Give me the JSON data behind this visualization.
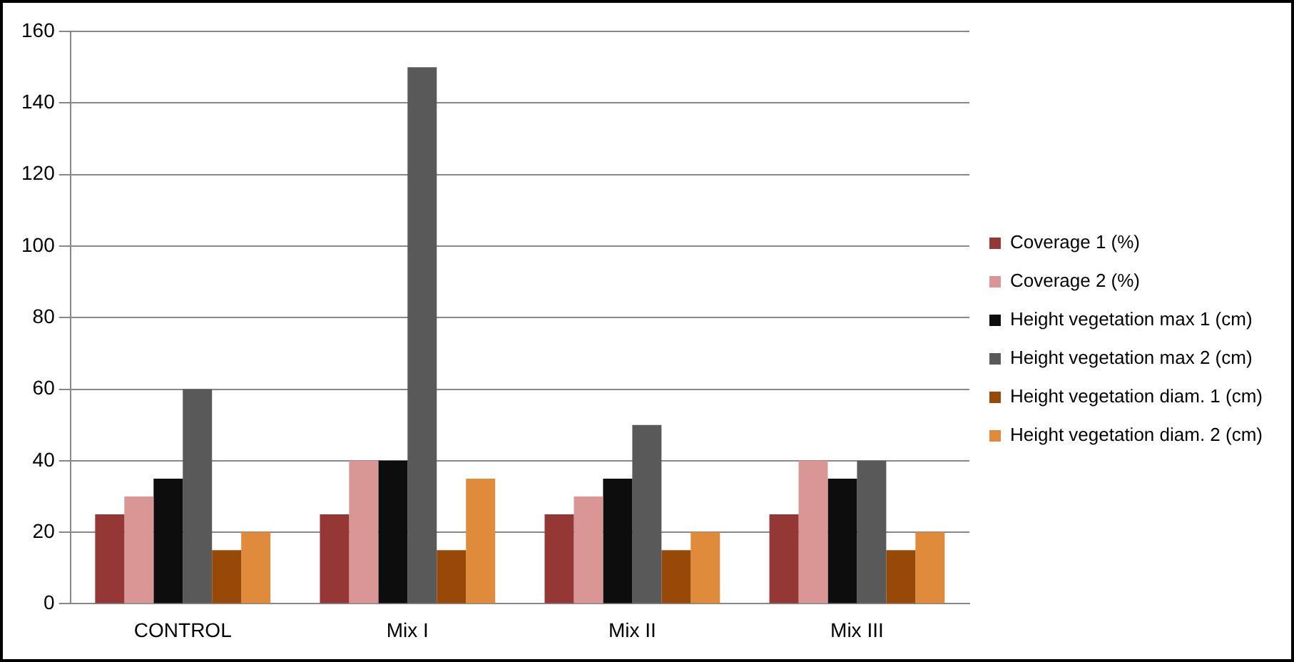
{
  "chart_data": {
    "type": "bar",
    "categories": [
      "CONTROL",
      "Mix I",
      "Mix II",
      "Mix III"
    ],
    "series": [
      {
        "name": "Coverage 1 (%)",
        "color": "#953735",
        "values": [
          25,
          25,
          25,
          25
        ]
      },
      {
        "name": "Coverage 2 (%)",
        "color": "#d99694",
        "values": [
          30,
          40,
          30,
          40
        ]
      },
      {
        "name": "Height vegetation max 1 (cm)",
        "color": "#0d0d0d",
        "values": [
          35,
          40,
          35,
          35
        ]
      },
      {
        "name": "Height vegetation max 2 (cm)",
        "color": "#595959",
        "values": [
          60,
          150,
          50,
          40
        ]
      },
      {
        "name": "Height vegetation diam. 1 (cm)",
        "color": "#984807",
        "values": [
          15,
          15,
          15,
          15
        ]
      },
      {
        "name": "Height vegetation diam. 2 (cm)",
        "color": "#e08a3c",
        "values": [
          20,
          35,
          20,
          20
        ]
      }
    ],
    "ylim": [
      0,
      160
    ],
    "yticks": [
      0,
      20,
      40,
      60,
      80,
      100,
      120,
      140,
      160
    ],
    "grid": "y",
    "legend": "right"
  }
}
